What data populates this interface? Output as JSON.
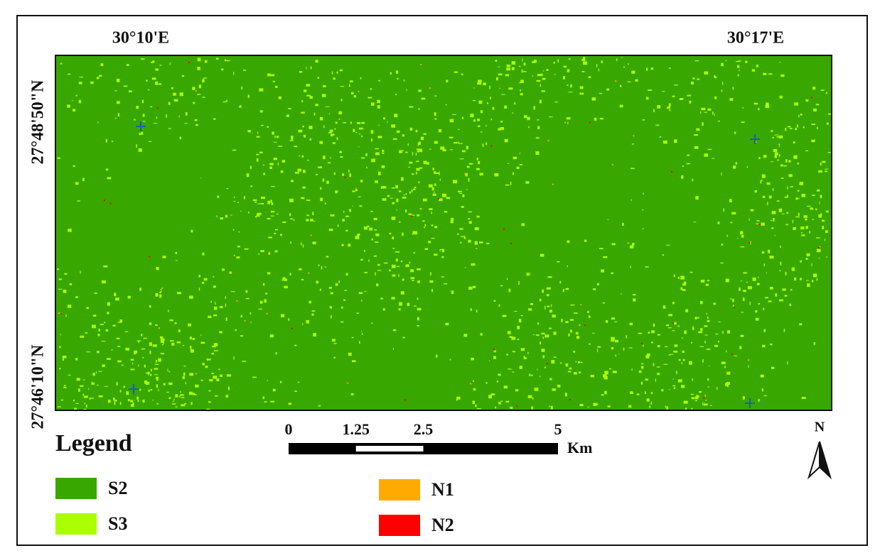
{
  "map": {
    "top_labels": [
      "30°10'E",
      "30°17'E"
    ],
    "left_labels": [
      "27°48'50\"N",
      "27°46'10\"N"
    ],
    "legend": {
      "title": "Legend",
      "items": [
        {
          "label": "S2",
          "color": "#38a800"
        },
        {
          "label": "S3",
          "color": "#aaff00"
        },
        {
          "label": "N1",
          "color": "#ffaa00"
        },
        {
          "label": "N2",
          "color": "#ff0000"
        }
      ]
    },
    "scale_bar": {
      "ticks": [
        0,
        1.25,
        2.5,
        5
      ],
      "unit": "Km"
    },
    "north_label": "N"
  }
}
